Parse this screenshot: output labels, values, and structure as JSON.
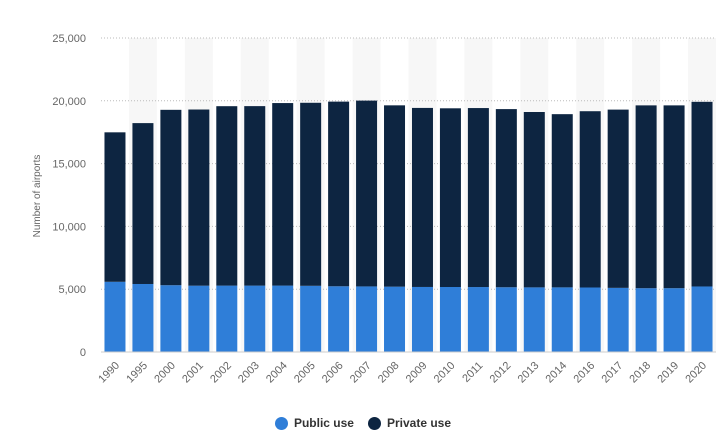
{
  "chart_data": {
    "type": "bar",
    "stacked": true,
    "categories": [
      "1990",
      "1995",
      "2000",
      "2001",
      "2002",
      "2003",
      "2004",
      "2005",
      "2006",
      "2007",
      "2008",
      "2009",
      "2010",
      "2011",
      "2012",
      "2013",
      "2014",
      "2016",
      "2017",
      "2018",
      "2019",
      "2020"
    ],
    "series": [
      {
        "name": "Public use",
        "color": "#2f7ed8",
        "values": [
          5589,
          5415,
          5317,
          5281,
          5286,
          5286,
          5288,
          5270,
          5233,
          5221,
          5202,
          5178,
          5175,
          5172,
          5155,
          5145,
          5145,
          5136,
          5106,
          5080,
          5080,
          5217
        ]
      },
      {
        "name": "Private use",
        "color": "#0d2541",
        "values": [
          11901,
          12809,
          13964,
          14025,
          14285,
          14290,
          14532,
          14572,
          14702,
          14794,
          14437,
          14255,
          14228,
          14250,
          14184,
          13963,
          13791,
          14035,
          14193,
          14556,
          14556,
          14702
        ]
      }
    ],
    "ylabel": "Number of airports",
    "xlabel": "",
    "ylim": [
      0,
      25000
    ],
    "yticks": [
      0,
      5000,
      10000,
      15000,
      20000,
      25000
    ],
    "ytick_labels": [
      "0",
      "5,000",
      "10,000",
      "15,000",
      "20,000",
      "25,000"
    ],
    "grid": true,
    "legend_position": "bottom-center"
  }
}
